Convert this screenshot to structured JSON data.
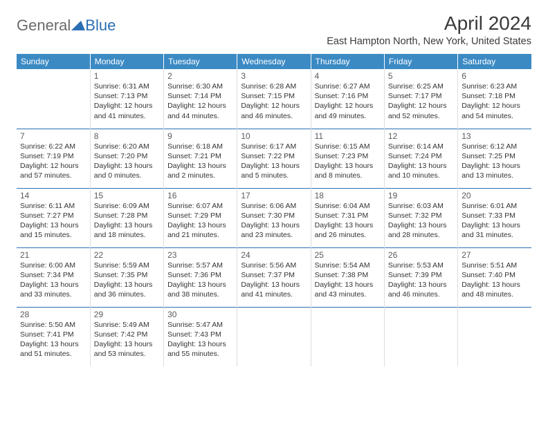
{
  "brand": {
    "part1": "General",
    "part2": "Blue"
  },
  "title": "April 2024",
  "location": "East Hampton North, New York, United States",
  "headerBg": "#3b8ac4",
  "dividerColor": "#2b6fb5",
  "dayNames": [
    "Sunday",
    "Monday",
    "Tuesday",
    "Wednesday",
    "Thursday",
    "Friday",
    "Saturday"
  ],
  "weeks": [
    [
      null,
      {
        "n": "1",
        "sr": "6:31 AM",
        "ss": "7:13 PM",
        "dl": "12 hours and 41 minutes."
      },
      {
        "n": "2",
        "sr": "6:30 AM",
        "ss": "7:14 PM",
        "dl": "12 hours and 44 minutes."
      },
      {
        "n": "3",
        "sr": "6:28 AM",
        "ss": "7:15 PM",
        "dl": "12 hours and 46 minutes."
      },
      {
        "n": "4",
        "sr": "6:27 AM",
        "ss": "7:16 PM",
        "dl": "12 hours and 49 minutes."
      },
      {
        "n": "5",
        "sr": "6:25 AM",
        "ss": "7:17 PM",
        "dl": "12 hours and 52 minutes."
      },
      {
        "n": "6",
        "sr": "6:23 AM",
        "ss": "7:18 PM",
        "dl": "12 hours and 54 minutes."
      }
    ],
    [
      {
        "n": "7",
        "sr": "6:22 AM",
        "ss": "7:19 PM",
        "dl": "12 hours and 57 minutes."
      },
      {
        "n": "8",
        "sr": "6:20 AM",
        "ss": "7:20 PM",
        "dl": "13 hours and 0 minutes."
      },
      {
        "n": "9",
        "sr": "6:18 AM",
        "ss": "7:21 PM",
        "dl": "13 hours and 2 minutes."
      },
      {
        "n": "10",
        "sr": "6:17 AM",
        "ss": "7:22 PM",
        "dl": "13 hours and 5 minutes."
      },
      {
        "n": "11",
        "sr": "6:15 AM",
        "ss": "7:23 PM",
        "dl": "13 hours and 8 minutes."
      },
      {
        "n": "12",
        "sr": "6:14 AM",
        "ss": "7:24 PM",
        "dl": "13 hours and 10 minutes."
      },
      {
        "n": "13",
        "sr": "6:12 AM",
        "ss": "7:25 PM",
        "dl": "13 hours and 13 minutes."
      }
    ],
    [
      {
        "n": "14",
        "sr": "6:11 AM",
        "ss": "7:27 PM",
        "dl": "13 hours and 15 minutes."
      },
      {
        "n": "15",
        "sr": "6:09 AM",
        "ss": "7:28 PM",
        "dl": "13 hours and 18 minutes."
      },
      {
        "n": "16",
        "sr": "6:07 AM",
        "ss": "7:29 PM",
        "dl": "13 hours and 21 minutes."
      },
      {
        "n": "17",
        "sr": "6:06 AM",
        "ss": "7:30 PM",
        "dl": "13 hours and 23 minutes."
      },
      {
        "n": "18",
        "sr": "6:04 AM",
        "ss": "7:31 PM",
        "dl": "13 hours and 26 minutes."
      },
      {
        "n": "19",
        "sr": "6:03 AM",
        "ss": "7:32 PM",
        "dl": "13 hours and 28 minutes."
      },
      {
        "n": "20",
        "sr": "6:01 AM",
        "ss": "7:33 PM",
        "dl": "13 hours and 31 minutes."
      }
    ],
    [
      {
        "n": "21",
        "sr": "6:00 AM",
        "ss": "7:34 PM",
        "dl": "13 hours and 33 minutes."
      },
      {
        "n": "22",
        "sr": "5:59 AM",
        "ss": "7:35 PM",
        "dl": "13 hours and 36 minutes."
      },
      {
        "n": "23",
        "sr": "5:57 AM",
        "ss": "7:36 PM",
        "dl": "13 hours and 38 minutes."
      },
      {
        "n": "24",
        "sr": "5:56 AM",
        "ss": "7:37 PM",
        "dl": "13 hours and 41 minutes."
      },
      {
        "n": "25",
        "sr": "5:54 AM",
        "ss": "7:38 PM",
        "dl": "13 hours and 43 minutes."
      },
      {
        "n": "26",
        "sr": "5:53 AM",
        "ss": "7:39 PM",
        "dl": "13 hours and 46 minutes."
      },
      {
        "n": "27",
        "sr": "5:51 AM",
        "ss": "7:40 PM",
        "dl": "13 hours and 48 minutes."
      }
    ],
    [
      {
        "n": "28",
        "sr": "5:50 AM",
        "ss": "7:41 PM",
        "dl": "13 hours and 51 minutes."
      },
      {
        "n": "29",
        "sr": "5:49 AM",
        "ss": "7:42 PM",
        "dl": "13 hours and 53 minutes."
      },
      {
        "n": "30",
        "sr": "5:47 AM",
        "ss": "7:43 PM",
        "dl": "13 hours and 55 minutes."
      },
      null,
      null,
      null,
      null
    ]
  ],
  "labels": {
    "sunrise": "Sunrise:",
    "sunset": "Sunset:",
    "daylight": "Daylight:"
  }
}
